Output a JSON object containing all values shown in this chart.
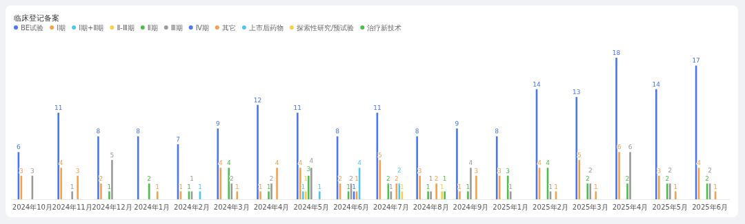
{
  "chart_data": {
    "type": "bar",
    "title": "临床登记备案",
    "legend": "top left",
    "data_labels": true,
    "categories": [
      "2024年10月",
      "2024年11月",
      "2024年12月",
      "2024年1月",
      "2024年2月",
      "2024年3月",
      "2024年4月",
      "2024年5月",
      "2024年6月",
      "2024年7月",
      "2024年8月",
      "2024年9月",
      "2025年1月",
      "2025年2月",
      "2025年3月",
      "2025年4月",
      "2025年5月",
      "2025年6月"
    ],
    "series": [
      {
        "name": "BE试验",
        "color": "#4a76ee",
        "values": [
          6,
          11,
          8,
          8,
          7,
          9,
          12,
          11,
          8,
          11,
          8,
          9,
          8,
          14,
          13,
          18,
          14,
          17
        ]
      },
      {
        "name": "Ⅰ期",
        "color": "#f5a04a",
        "values": [
          3,
          4,
          2,
          null,
          1,
          4,
          1,
          4,
          2,
          5,
          3,
          1,
          3,
          4,
          5,
          6,
          3,
          4
        ]
      },
      {
        "name": "Ⅰ期+Ⅱ期",
        "color": "#4cc8ee",
        "values": [
          null,
          null,
          null,
          null,
          null,
          null,
          null,
          1,
          null,
          null,
          null,
          null,
          null,
          null,
          null,
          null,
          null,
          null
        ]
      },
      {
        "name": "Ⅱ-Ⅲ期",
        "color": "#f9cf45",
        "values": [
          null,
          null,
          null,
          null,
          null,
          null,
          null,
          1,
          null,
          null,
          null,
          null,
          null,
          null,
          null,
          null,
          null,
          null
        ]
      },
      {
        "name": "Ⅱ期",
        "color": "#4cbf4a",
        "values": [
          null,
          null,
          1,
          2,
          1,
          4,
          1,
          3,
          1,
          2,
          1,
          1,
          3,
          4,
          2,
          2,
          2,
          2
        ]
      },
      {
        "name": "Ⅲ期",
        "color": "#9a9a9a",
        "values": [
          3,
          1,
          5,
          null,
          1,
          2,
          2,
          4,
          2,
          1,
          1,
          4,
          1,
          1,
          2,
          6,
          2,
          2
        ]
      },
      {
        "name": "Ⅳ期",
        "color": "#4a76ee",
        "values": [
          null,
          null,
          null,
          null,
          null,
          null,
          null,
          null,
          1,
          null,
          null,
          null,
          null,
          null,
          null,
          null,
          null,
          null
        ]
      },
      {
        "name": "其它",
        "color": "#f5a04a",
        "values": [
          null,
          3,
          null,
          1,
          null,
          1,
          4,
          null,
          1,
          2,
          2,
          3,
          null,
          1,
          1,
          null,
          1,
          1
        ]
      },
      {
        "name": "上市后药物",
        "color": "#4cc8ee",
        "values": [
          null,
          null,
          null,
          null,
          1,
          null,
          null,
          1,
          4,
          2,
          null,
          null,
          null,
          null,
          null,
          null,
          null,
          null
        ]
      },
      {
        "name": "探索性研究/预试验",
        "color": "#f9cf45",
        "values": [
          null,
          null,
          null,
          null,
          null,
          null,
          null,
          null,
          null,
          1,
          1,
          null,
          null,
          null,
          null,
          null,
          null,
          null
        ]
      },
      {
        "name": "治疗新技术",
        "color": "#4cbf4a",
        "values": [
          null,
          null,
          null,
          null,
          null,
          null,
          null,
          null,
          null,
          null,
          1,
          null,
          null,
          null,
          null,
          null,
          null,
          null
        ]
      }
    ]
  }
}
